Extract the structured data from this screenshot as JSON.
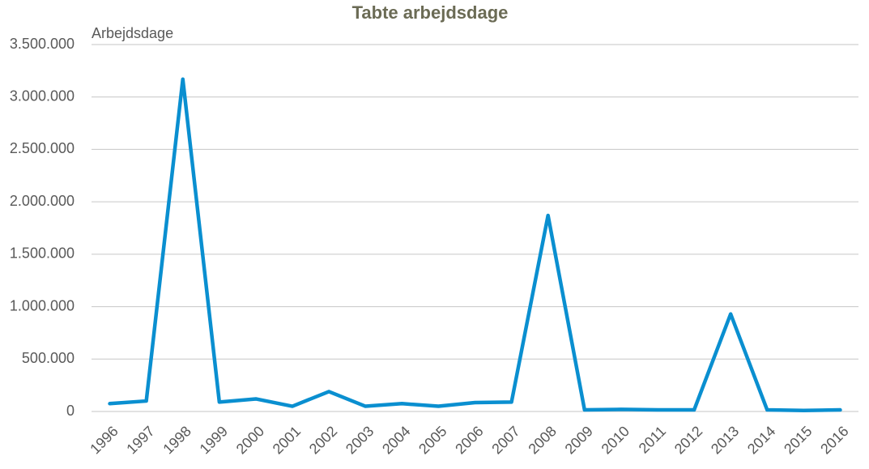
{
  "chart_data": {
    "type": "line",
    "title": "Tabte arbejdsdage",
    "y_label": "Arbejdsdage",
    "categories": [
      "1996",
      "1997",
      "1998",
      "1999",
      "2000",
      "2001",
      "2002",
      "2003",
      "2004",
      "2005",
      "2006",
      "2007",
      "2008",
      "2009",
      "2010",
      "2011",
      "2012",
      "2013",
      "2014",
      "2015",
      "2016"
    ],
    "values": [
      75000,
      100000,
      3170000,
      90000,
      120000,
      50000,
      190000,
      50000,
      75000,
      50000,
      85000,
      90000,
      1870000,
      15000,
      20000,
      15000,
      15000,
      930000,
      15000,
      10000,
      15000
    ],
    "color": "#0a8fd0",
    "ylim": [
      0,
      3500000
    ],
    "yticks": [
      0,
      {
        "value": 500000,
        "label": "500.000"
      },
      {
        "value": 1000000,
        "label": "1.000.000"
      },
      {
        "value": 1500000,
        "label": "1.500.000"
      },
      {
        "value": 2000000,
        "label": "2.000.000"
      },
      {
        "value": 2500000,
        "label": "2.500.000"
      },
      {
        "value": 3000000,
        "label": "3.000.000"
      },
      {
        "value": 3500000,
        "label": "3.500.000"
      }
    ],
    "grid": true
  }
}
